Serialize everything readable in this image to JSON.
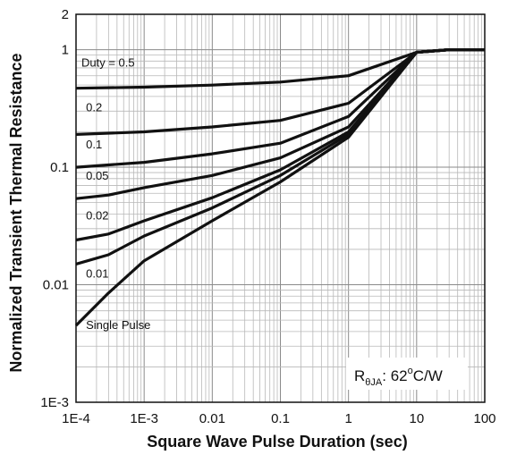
{
  "chart_data": {
    "type": "line",
    "title": "",
    "xlabel": "Square Wave Pulse Duration (sec)",
    "ylabel": "Normalized Transient Thermal Resistance",
    "xscale": "log",
    "yscale": "log",
    "xlim": [
      0.0001,
      100
    ],
    "ylim": [
      0.001,
      2
    ],
    "grid": true,
    "x_tick_labels": [
      "1E-4",
      "1E-3",
      "0.01",
      "0.1",
      "1",
      "10",
      "100"
    ],
    "y_tick_labels": [
      "1E-3",
      "0.01",
      "0.1",
      "1",
      "2"
    ],
    "annotation": {
      "r_symbol": "R",
      "r_subscript": "θJA",
      "r_value": ": 62",
      "r_degree": "o",
      "r_unit": "C/W"
    },
    "series": [
      {
        "name": "Duty = 0.5",
        "x": [
          0.0001,
          0.001,
          0.01,
          0.1,
          1,
          10,
          30,
          100
        ],
        "y": [
          0.47,
          0.48,
          0.5,
          0.53,
          0.6,
          0.95,
          1.0,
          1.0
        ]
      },
      {
        "name": "0.2",
        "x": [
          0.0001,
          0.001,
          0.01,
          0.1,
          1,
          10,
          30,
          100
        ],
        "y": [
          0.19,
          0.2,
          0.22,
          0.25,
          0.35,
          0.95,
          1.0,
          1.0
        ]
      },
      {
        "name": "0.1",
        "x": [
          0.0001,
          0.001,
          0.01,
          0.1,
          1,
          10,
          30,
          100
        ],
        "y": [
          0.1,
          0.11,
          0.13,
          0.16,
          0.27,
          0.95,
          1.0,
          1.0
        ]
      },
      {
        "name": "0.05",
        "x": [
          0.0001,
          0.0003,
          0.001,
          0.01,
          0.1,
          1,
          10,
          30,
          100
        ],
        "y": [
          0.054,
          0.058,
          0.067,
          0.085,
          0.12,
          0.22,
          0.95,
          1.0,
          1.0
        ]
      },
      {
        "name": "0.02",
        "x": [
          0.0001,
          0.0003,
          0.001,
          0.01,
          0.1,
          1,
          10,
          30,
          100
        ],
        "y": [
          0.024,
          0.027,
          0.035,
          0.055,
          0.095,
          0.2,
          0.95,
          1.0,
          1.0
        ]
      },
      {
        "name": "0.01",
        "x": [
          0.0001,
          0.0003,
          0.001,
          0.01,
          0.1,
          1,
          10,
          30,
          100
        ],
        "y": [
          0.015,
          0.018,
          0.026,
          0.045,
          0.085,
          0.19,
          0.95,
          1.0,
          1.0
        ]
      },
      {
        "name": "Single Pulse",
        "x": [
          0.0001,
          0.0003,
          0.001,
          0.01,
          0.1,
          1,
          10,
          30,
          100
        ],
        "y": [
          0.0045,
          0.0085,
          0.016,
          0.035,
          0.075,
          0.18,
          0.95,
          1.0,
          1.0
        ]
      }
    ]
  }
}
